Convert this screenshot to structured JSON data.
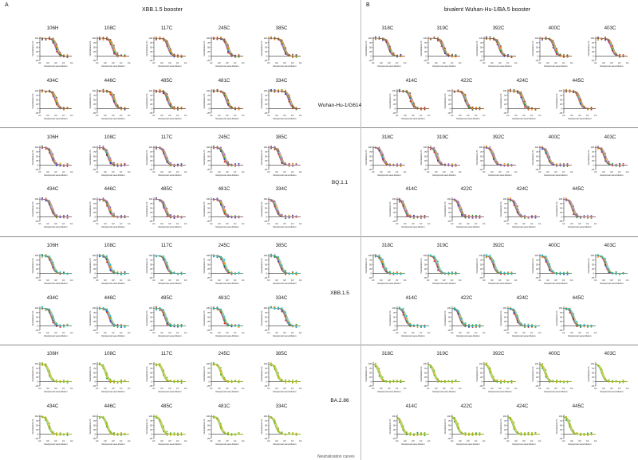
{
  "figure": {
    "panel_a": {
      "letter": "A",
      "title": "XBB.1.5 booster"
    },
    "panel_b": {
      "letter": "B",
      "title": "bivalent Wuhan-Hu-1/BA.5 booster"
    },
    "footer_text": "Neutralization curves"
  },
  "axis_text": {
    "ylabel": "Neutralization %",
    "xlabel": "Reciprocal sera dilution"
  },
  "colors": {
    "Wuhan-Hu-1/G614": [
      "#d62728",
      "#1f3fbf",
      "#2ca02c",
      "#ff8c00",
      "#8c564b"
    ],
    "BQ.1.1": [
      "#d62728",
      "#1f3fbf",
      "#2ca02c",
      "#ff8c00",
      "#9467bd"
    ],
    "XBB.1.5": [
      "#d62728",
      "#1f3fbf",
      "#2ca02c",
      "#ff8c00",
      "#17becf"
    ],
    "BA.2.86": [
      "#2ca02c",
      "#b8c400",
      "#e0a800",
      "#7fbf3f"
    ]
  },
  "chart_data": {
    "type": "line",
    "yticks": [
      100,
      75,
      50,
      25,
      0,
      -25
    ],
    "ylim": [
      -25,
      110
    ],
    "xticks": [
      "10¹",
      "10²",
      "10³",
      "10⁴",
      "10⁵"
    ],
    "panels": {
      "A": [
        "106H",
        "108C",
        "117C",
        "245C",
        "385C",
        "434C",
        "446C",
        "485C",
        "481C",
        "334C"
      ],
      "B": [
        "318C",
        "319C",
        "392C",
        "400C",
        "403C",
        "414C",
        "422C",
        "424C",
        "445C"
      ]
    },
    "variants": [
      {
        "name": "Wuhan-Hu-1/G614",
        "A_ic50": [
          1200,
          900,
          700,
          1100,
          800,
          1000,
          1300,
          600,
          900,
          4000
        ],
        "B_ic50": [
          1000,
          800,
          900,
          700,
          1100,
          600,
          500,
          800,
          1000
        ]
      },
      {
        "name": "BQ.1.1",
        "A_ic50": [
          350,
          250,
          300,
          400,
          280,
          300,
          320,
          260,
          310,
          90
        ],
        "B_ic50": [
          150,
          130,
          160,
          110,
          140,
          90,
          100,
          120,
          130
        ]
      },
      {
        "name": "XBB.1.5",
        "A_ic50": [
          400,
          320,
          380,
          450,
          300,
          350,
          370,
          280,
          340,
          1500
        ],
        "B_ic50": [
          180,
          140,
          170,
          120,
          200,
          110,
          100,
          130,
          150
        ]
      },
      {
        "name": "BA.2.86",
        "A_ic50": [
          150,
          120,
          160,
          180,
          110,
          130,
          170,
          100,
          140,
          80
        ],
        "B_ic50": [
          60,
          55,
          70,
          50,
          65,
          40,
          45,
          50,
          60
        ]
      }
    ]
  }
}
